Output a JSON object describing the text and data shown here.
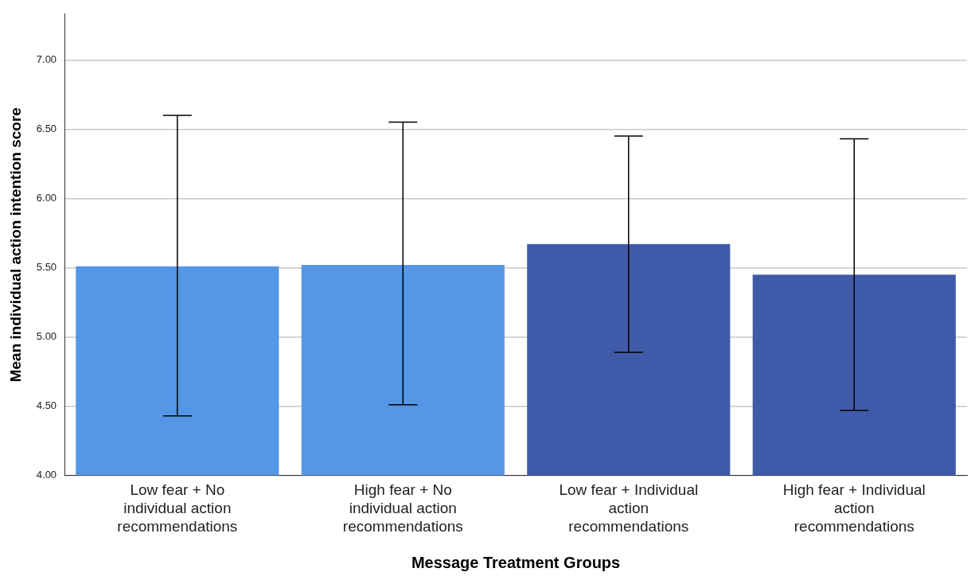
{
  "chart_data": {
    "type": "bar",
    "xlabel": "Message Treatment Groups",
    "ylabel": "Mean individual action intention score",
    "categories": [
      "Low fear + No individual action recommendations",
      "High fear + No individual action recommendations",
      "Low fear + Individual action recommendations",
      "High fear + Individual action recommendations"
    ],
    "values": [
      5.51,
      5.52,
      5.67,
      5.45
    ],
    "colors": [
      "#5596e6",
      "#5596e6",
      "#3f5aa8",
      "#3f5aa8"
    ],
    "errors": [
      [
        4.43,
        6.6
      ],
      [
        4.51,
        6.55
      ],
      [
        4.89,
        6.45
      ],
      [
        4.47,
        6.43
      ]
    ],
    "ylim": [
      4,
      7.33
    ],
    "yticks": [
      {
        "value": 4,
        "label": "4.00"
      },
      {
        "value": 4.5,
        "label": "4.50"
      },
      {
        "value": 5,
        "label": "5.00"
      },
      {
        "value": 5.5,
        "label": "5.50"
      },
      {
        "value": 6,
        "label": "6.00"
      },
      {
        "value": 6.5,
        "label": "6.50"
      },
      {
        "value": 7,
        "label": "7.00"
      }
    ],
    "grid": "y",
    "legend": false
  }
}
